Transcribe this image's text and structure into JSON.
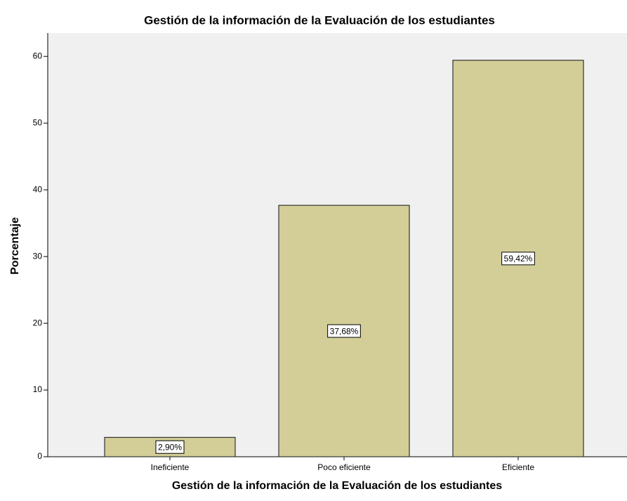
{
  "chart_data": {
    "type": "bar",
    "title": "Gestión de la información de la Evaluación de los estudiantes",
    "x_label": "Gestión de la información de la Evaluación de los estudiantes",
    "y_label": "Porcentaje",
    "categories": [
      "Ineficiente",
      "Poco eficiente",
      "Eficiente"
    ],
    "values": [
      2.9,
      37.68,
      59.42
    ],
    "value_labels": [
      "2,90%",
      "37,68%",
      "59,42%"
    ],
    "color": "#d3ce97",
    "ylim": [
      0,
      63.5
    ],
    "yticks": [
      0,
      10,
      20,
      30,
      40,
      50,
      60
    ],
    "grid": false
  }
}
